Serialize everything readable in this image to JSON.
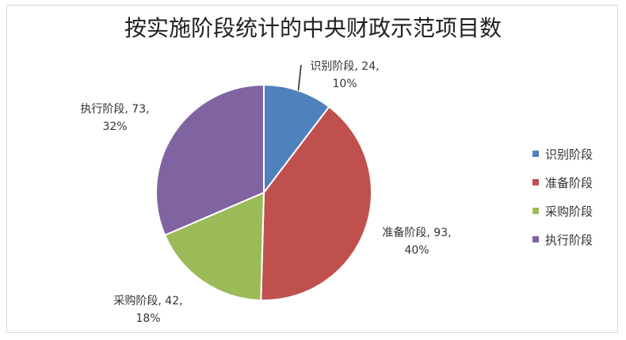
{
  "chart_data": {
    "type": "pie",
    "title": "按实施阶段统计的中央财政示范项目数",
    "categories": [
      "识别阶段",
      "准备阶段",
      "采购阶段",
      "执行阶段"
    ],
    "values": [
      24,
      93,
      42,
      73
    ],
    "percentages": [
      "10%",
      "40%",
      "18%",
      "32%"
    ],
    "data_labels": [
      {
        "name": "识别阶段",
        "value": "24",
        "percent": "10%"
      },
      {
        "name": "准备阶段",
        "value": "93",
        "percent": "40%"
      },
      {
        "name": "采购阶段",
        "value": "42",
        "percent": "18%"
      },
      {
        "name": "执行阶段",
        "value": "73",
        "percent": "32%"
      }
    ],
    "colors": [
      "#4f81bd",
      "#c0504d",
      "#9bbb59",
      "#8064a2"
    ],
    "legend": {
      "position": "right",
      "items": [
        "识别阶段",
        "准备阶段",
        "采购阶段",
        "执行阶段"
      ]
    }
  }
}
